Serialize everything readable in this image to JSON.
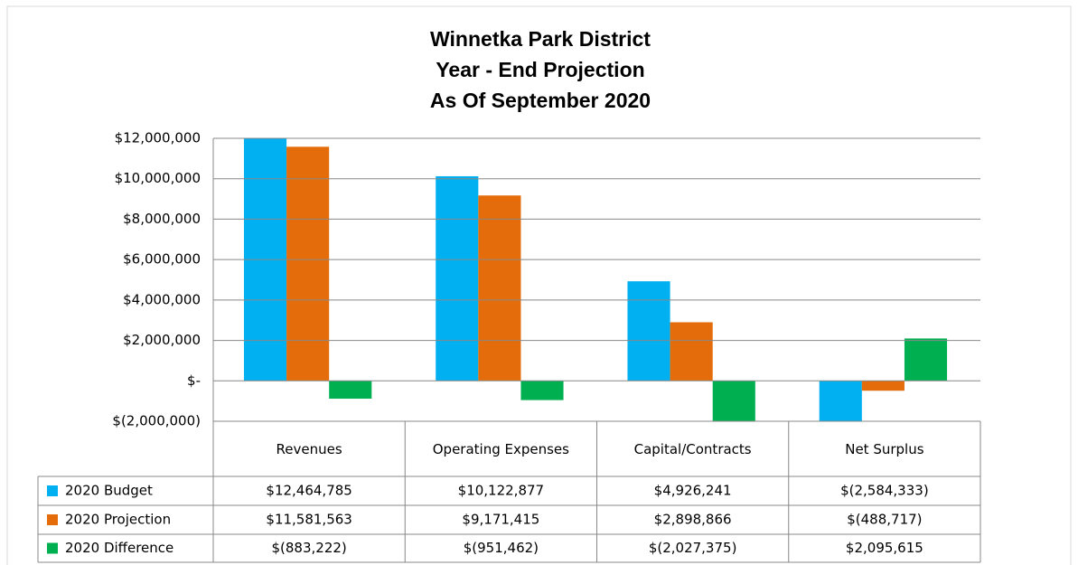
{
  "chart_data": {
    "type": "bar",
    "title_lines": [
      "Winnetka Park District",
      "Year - End Projection",
      "As Of September 2020"
    ],
    "categories": [
      "Revenues",
      "Operating Expenses",
      "Capital/Contracts",
      "Net Surplus"
    ],
    "series": [
      {
        "name": "2020 Budget",
        "color": "#00b0f0",
        "values": [
          12464785,
          10122877,
          4926241,
          -2584333
        ],
        "value_labels": [
          "$12,464,785",
          "$10,122,877",
          "$4,926,241",
          "$(2,584,333)"
        ]
      },
      {
        "name": "2020 Projection",
        "color": "#e46c0a",
        "values": [
          11581563,
          9171415,
          2898866,
          -488717
        ],
        "value_labels": [
          "$11,581,563",
          "$9,171,415",
          "$2,898,866",
          "$(488,717)"
        ]
      },
      {
        "name": "2020 Difference",
        "color": "#00b050",
        "values": [
          -883222,
          -951462,
          -2027375,
          2095615
        ],
        "value_labels": [
          "$(883,222)",
          "$(951,462)",
          "$(2,027,375)",
          "$2,095,615"
        ]
      }
    ],
    "ylim": [
      -2000000,
      12000000
    ],
    "yticks": [
      {
        "value": -2000000,
        "label": "$(2,000,000)"
      },
      {
        "value": 0,
        "label": "$-"
      },
      {
        "value": 2000000,
        "label": "$2,000,000"
      },
      {
        "value": 4000000,
        "label": "$4,000,000"
      },
      {
        "value": 6000000,
        "label": "$6,000,000"
      },
      {
        "value": 8000000,
        "label": "$8,000,000"
      },
      {
        "value": 10000000,
        "label": "$10,000,000"
      },
      {
        "value": 12000000,
        "label": "$12,000,000"
      }
    ],
    "grid": true
  }
}
